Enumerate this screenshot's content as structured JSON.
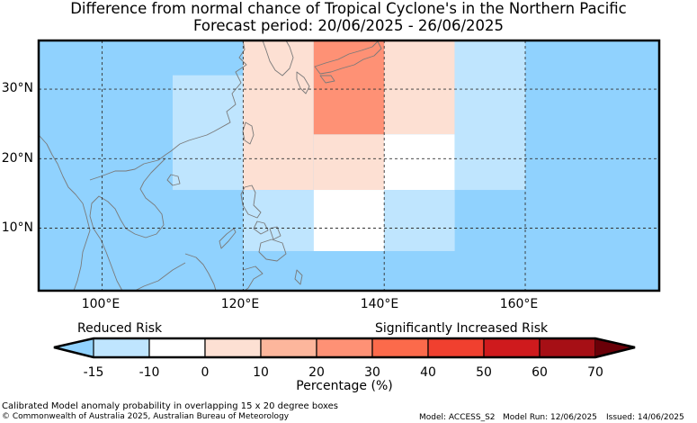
{
  "header": {
    "title_line1": "Difference from normal chance of Tropical Cyclone's in the Northern Pacific",
    "title_line2": "Forecast period: 20/06/2025 - 26/06/2025"
  },
  "map": {
    "lon_range": [
      91,
      179
    ],
    "lat_range": [
      1,
      37
    ],
    "background_color": "#90d2fe",
    "gridline_lons": [
      100,
      120,
      140,
      160
    ],
    "gridline_lats": [
      10,
      20,
      30
    ],
    "lon_ticks": [
      "100°E",
      "120°E",
      "140°E",
      "160°E"
    ],
    "lat_ticks": [
      "30°N",
      "20°N",
      "10°N"
    ],
    "anomaly_cells": [
      {
        "lon_min": 110,
        "lon_max": 120,
        "lat_min": 15.5,
        "lat_max": 32,
        "color": "#bfe5fe"
      },
      {
        "lon_min": 120,
        "lon_max": 130,
        "lat_min": 15.5,
        "lat_max": 37,
        "color": "#fde0d3"
      },
      {
        "lon_min": 130,
        "lon_max": 140,
        "lat_min": 15.5,
        "lat_max": 23.5,
        "color": "#fde0d3"
      },
      {
        "lon_min": 140,
        "lon_max": 150,
        "lat_min": 23.5,
        "lat_max": 37,
        "color": "#fde0d3"
      },
      {
        "lon_min": 130,
        "lon_max": 140,
        "lat_min": 23.5,
        "lat_max": 37,
        "color": "#fe9175"
      },
      {
        "lon_min": 140,
        "lon_max": 150,
        "lat_min": 15.5,
        "lat_max": 23.5,
        "color": "#ffffff"
      },
      {
        "lon_min": 150,
        "lon_max": 160,
        "lat_min": 15.5,
        "lat_max": 37,
        "color": "#bfe5fe"
      },
      {
        "lon_min": 120,
        "lon_max": 130,
        "lat_min": 6.7,
        "lat_max": 15.5,
        "color": "#bfe5fe"
      },
      {
        "lon_min": 130,
        "lon_max": 140,
        "lat_min": 6.7,
        "lat_max": 15.5,
        "color": "#ffffff"
      },
      {
        "lon_min": 140,
        "lon_max": 150,
        "lat_min": 6.7,
        "lat_max": 15.5,
        "color": "#bfe5fe"
      }
    ]
  },
  "colorbar": {
    "reduced_label": "Reduced Risk",
    "increased_label": "Significantly Increased Risk",
    "title": "Percentage (%)",
    "ticks": [
      "-15",
      "-10",
      "0",
      "10",
      "20",
      "30",
      "40",
      "50",
      "60",
      "70"
    ],
    "under_color": "#90d2fe",
    "over_color": "#6a0008",
    "colors": [
      "#bfe5fe",
      "#ffffff",
      "#fde0d3",
      "#fdb69c",
      "#fe9175",
      "#fc6a4b",
      "#f0402f",
      "#cf1a1d",
      "#a60f15"
    ]
  },
  "footer": {
    "note": "Calibrated Model anomaly probability in overlapping 15 x 20 degree boxes",
    "copyright": "© Commonwealth of Australia 2025, Australian Bureau of Meteorology",
    "model": "Model: ACCESS_S2",
    "model_run": "Model Run: 12/06/2025",
    "issued": "Issued: 14/06/2025"
  }
}
